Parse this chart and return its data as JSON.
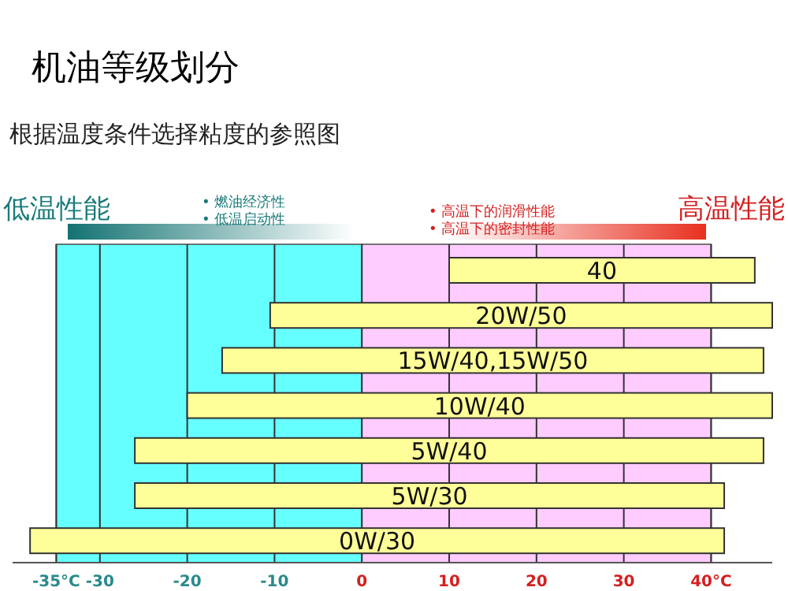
{
  "chart_data": {
    "type": "bar",
    "orientation": "horizontal",
    "title": "机油等级划分",
    "subtitle": "根据温度条件选择粘度的参照图",
    "categories": [
      "40",
      "20W/50",
      "15W/40,15W/50",
      "10W/40",
      "5W/40",
      "5W/30",
      "0W/30"
    ],
    "base": [
      10,
      -10.5,
      -16,
      -20,
      -26,
      -26,
      -38
    ],
    "values": [
      35,
      57.5,
      62,
      67,
      72,
      67.5,
      79.5
    ],
    "color": "#ffff99",
    "xlim": [
      -40,
      47
    ],
    "xticks": [
      {
        "value": -35,
        "label": "-35°C"
      },
      -30,
      -20,
      -10,
      0,
      10,
      20,
      30,
      {
        "value": 40,
        "label": "40°C"
      }
    ],
    "grid": "x",
    "bands": [
      {
        "axis": "x",
        "from": -35,
        "to": 0,
        "color": "#66ffff"
      },
      {
        "axis": "x",
        "from": 0,
        "to": 40,
        "color": "#ffccff"
      }
    ],
    "annotations": [
      "低温性能",
      "高温性能",
      "• 燃油经济性",
      "• 低温启动性",
      "• 高温下的润滑性能",
      "• 高温下的密封性能"
    ]
  }
}
